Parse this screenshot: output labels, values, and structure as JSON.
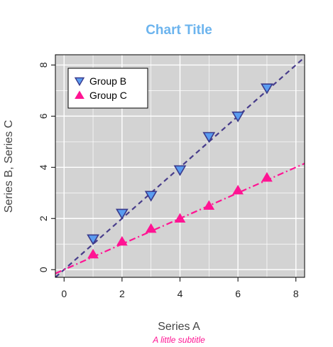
{
  "chart_data": {
    "type": "scatter",
    "title": "Chart Title",
    "subtitle": "A little subtitle",
    "xlabel": "Series A",
    "ylabel": "Series B, Series C",
    "xlim": [
      -0.3,
      8.3
    ],
    "ylim": [
      -0.3,
      8.4
    ],
    "xticks": [
      0,
      2,
      4,
      6,
      8
    ],
    "yticks": [
      0,
      2,
      4,
      6,
      8
    ],
    "grid": true,
    "legend_position": "top-left",
    "colors": {
      "title": "#6cb4ee",
      "subtitle": "#ff1493",
      "panel": "#d3d3d3",
      "grid": "#ffffff",
      "group_b_fill": "#5a9cf0",
      "group_b_edge": "#3a3a8c",
      "group_b_line": "#483d8b",
      "group_c_fill": "#ff1493",
      "group_c_line": "#ff1493"
    },
    "series": [
      {
        "name": "Group B",
        "marker": "triangle-down",
        "x": [
          1,
          2,
          3,
          4,
          5,
          6,
          7
        ],
        "y": [
          1.2,
          2.2,
          2.9,
          3.9,
          5.2,
          6.0,
          7.1
        ],
        "fit_line": {
          "style": "dashed",
          "slope": 1.0,
          "intercept": 0.0
        }
      },
      {
        "name": "Group C",
        "marker": "triangle-up",
        "x": [
          1,
          2,
          3,
          4,
          5,
          6,
          7
        ],
        "y": [
          0.6,
          1.1,
          1.6,
          2.0,
          2.5,
          3.1,
          3.6
        ],
        "fit_line": {
          "style": "dotdash",
          "slope": 0.5,
          "intercept": 0.0
        }
      }
    ]
  }
}
